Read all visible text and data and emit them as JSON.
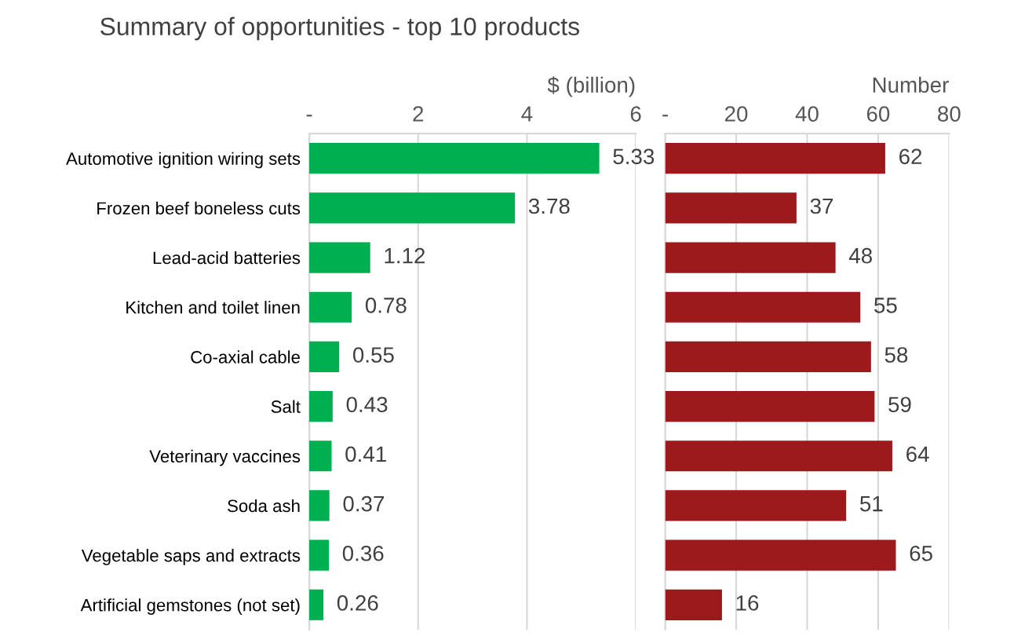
{
  "chart_data": [
    {
      "type": "bar",
      "orientation": "horizontal",
      "title": "Summary of opportunities - top 10 products",
      "xlabel": "$ (billion)",
      "categories": [
        "Automotive ignition wiring sets",
        "Frozen beef boneless cuts",
        "Lead-acid batteries",
        "Kitchen and toilet linen",
        "Co-axial cable",
        "Salt",
        "Veterinary vaccines",
        "Soda ash",
        "Vegetable saps and extracts",
        "Artificial gemstones (not set)"
      ],
      "values": [
        5.33,
        3.78,
        1.12,
        0.78,
        0.55,
        0.43,
        0.41,
        0.37,
        0.36,
        0.26
      ],
      "color": "#00b050",
      "xlim": [
        0,
        6
      ],
      "xticks": [
        {
          "value": 0,
          "label": "-"
        },
        2,
        4,
        6
      ],
      "grid": "x",
      "data_labels": true
    },
    {
      "type": "bar",
      "orientation": "horizontal",
      "xlabel": "Number",
      "categories": [
        null,
        null,
        null,
        null,
        null,
        null,
        null,
        null,
        null,
        null
      ],
      "values": [
        62,
        37,
        48,
        55,
        58,
        59,
        64,
        51,
        65,
        16
      ],
      "color": "#9c1a1c",
      "xlim": [
        0,
        80
      ],
      "xticks": [
        {
          "value": 0,
          "label": "-"
        },
        20,
        40,
        60,
        80
      ],
      "grid": "x",
      "data_labels": true,
      "tick_labels": "x"
    }
  ]
}
